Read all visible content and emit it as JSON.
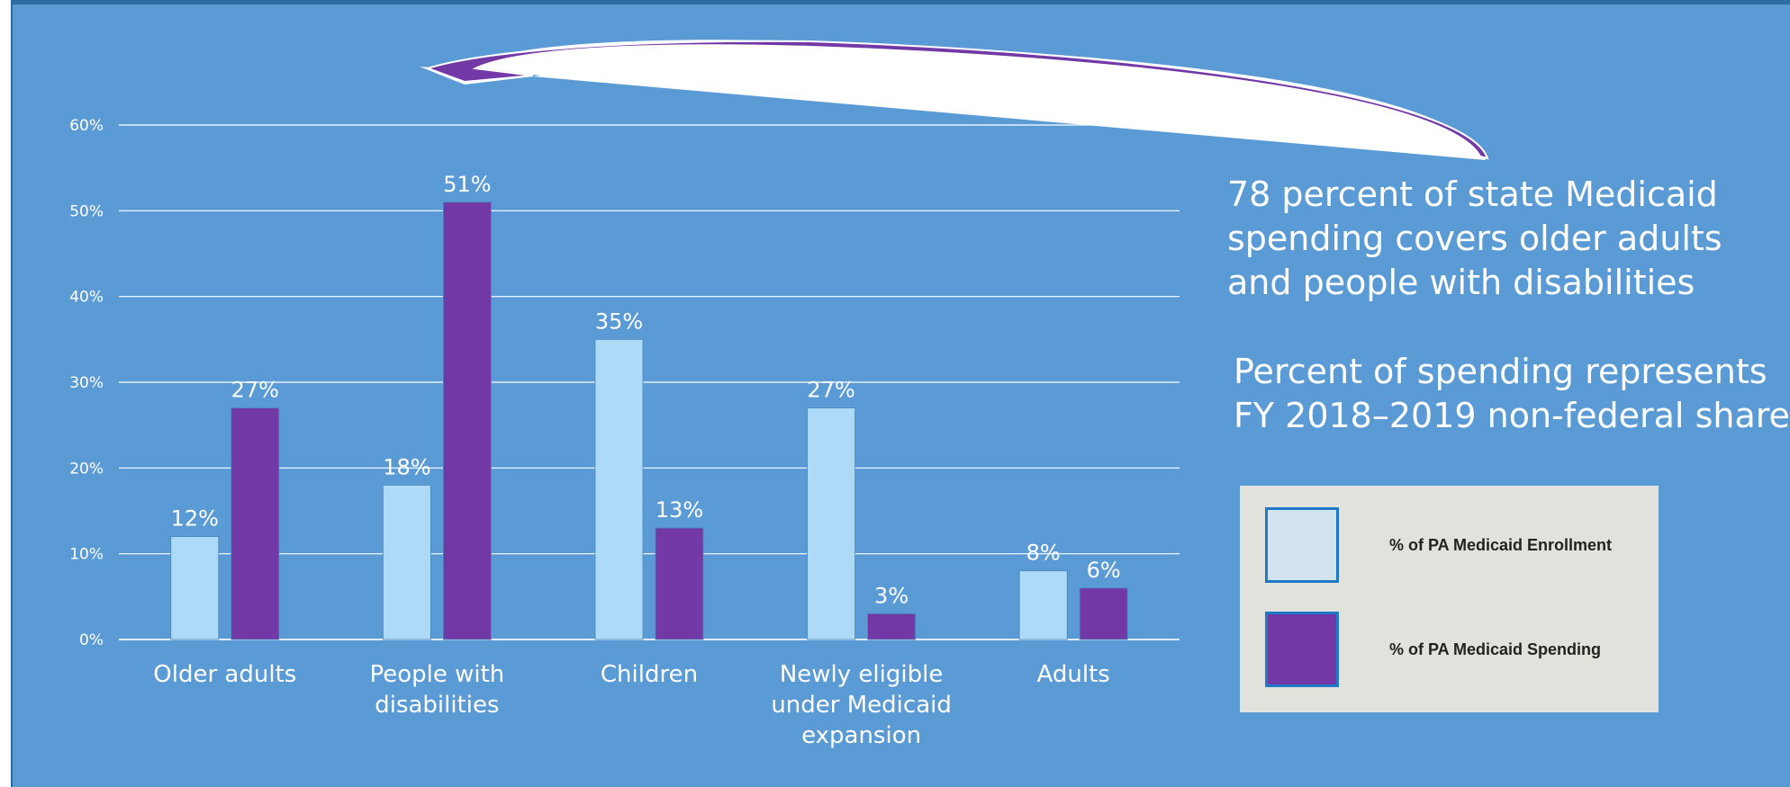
{
  "chart_data": {
    "type": "bar",
    "categories": [
      [
        "Older adults"
      ],
      [
        "People with",
        "disabilities"
      ],
      [
        "Children"
      ],
      [
        "Newly eligible",
        "under Medicaid",
        "expansion"
      ],
      [
        "Adults"
      ]
    ],
    "series": [
      {
        "name": "% of PA Medicaid Enrollment",
        "values": [
          12,
          18,
          35,
          27,
          8
        ],
        "color": "#addaf7"
      },
      {
        "name": "% of PA Medicaid Spending",
        "values": [
          27,
          51,
          13,
          3,
          6
        ],
        "color": "#7239a6"
      }
    ],
    "data_labels": [
      [
        "12%",
        "18%",
        "35%",
        "27%",
        "8%"
      ],
      [
        "27%",
        "51%",
        "13%",
        "3%",
        "6%"
      ]
    ],
    "yticks": [
      0,
      10,
      20,
      30,
      40,
      50,
      60
    ],
    "ytick_labels": [
      "0%",
      "10%",
      "20%",
      "30%",
      "40%",
      "50%",
      "60%"
    ],
    "ylim": [
      0,
      60
    ],
    "grid": true,
    "legend_position": "right"
  },
  "annotation": {
    "lines": [
      "78 percent of state Medicaid",
      "spending covers older adults",
      "and people with disabilities"
    ]
  },
  "note": {
    "lines": [
      "Percent of spending represents",
      "FY 2018–2019 non-federal share"
    ]
  },
  "legend": {
    "items": [
      {
        "label": "% of PA Medicaid Enrollment",
        "fill": "#d2e2ef"
      },
      {
        "label": "% of PA Medicaid Spending",
        "fill": "#7239a6"
      }
    ]
  },
  "colors": {
    "background": "#5b9bd5",
    "grid": "#ffffff",
    "text": "#ffffff",
    "arrow": "#7239a6",
    "legend_bg": "#e2e2dc"
  }
}
